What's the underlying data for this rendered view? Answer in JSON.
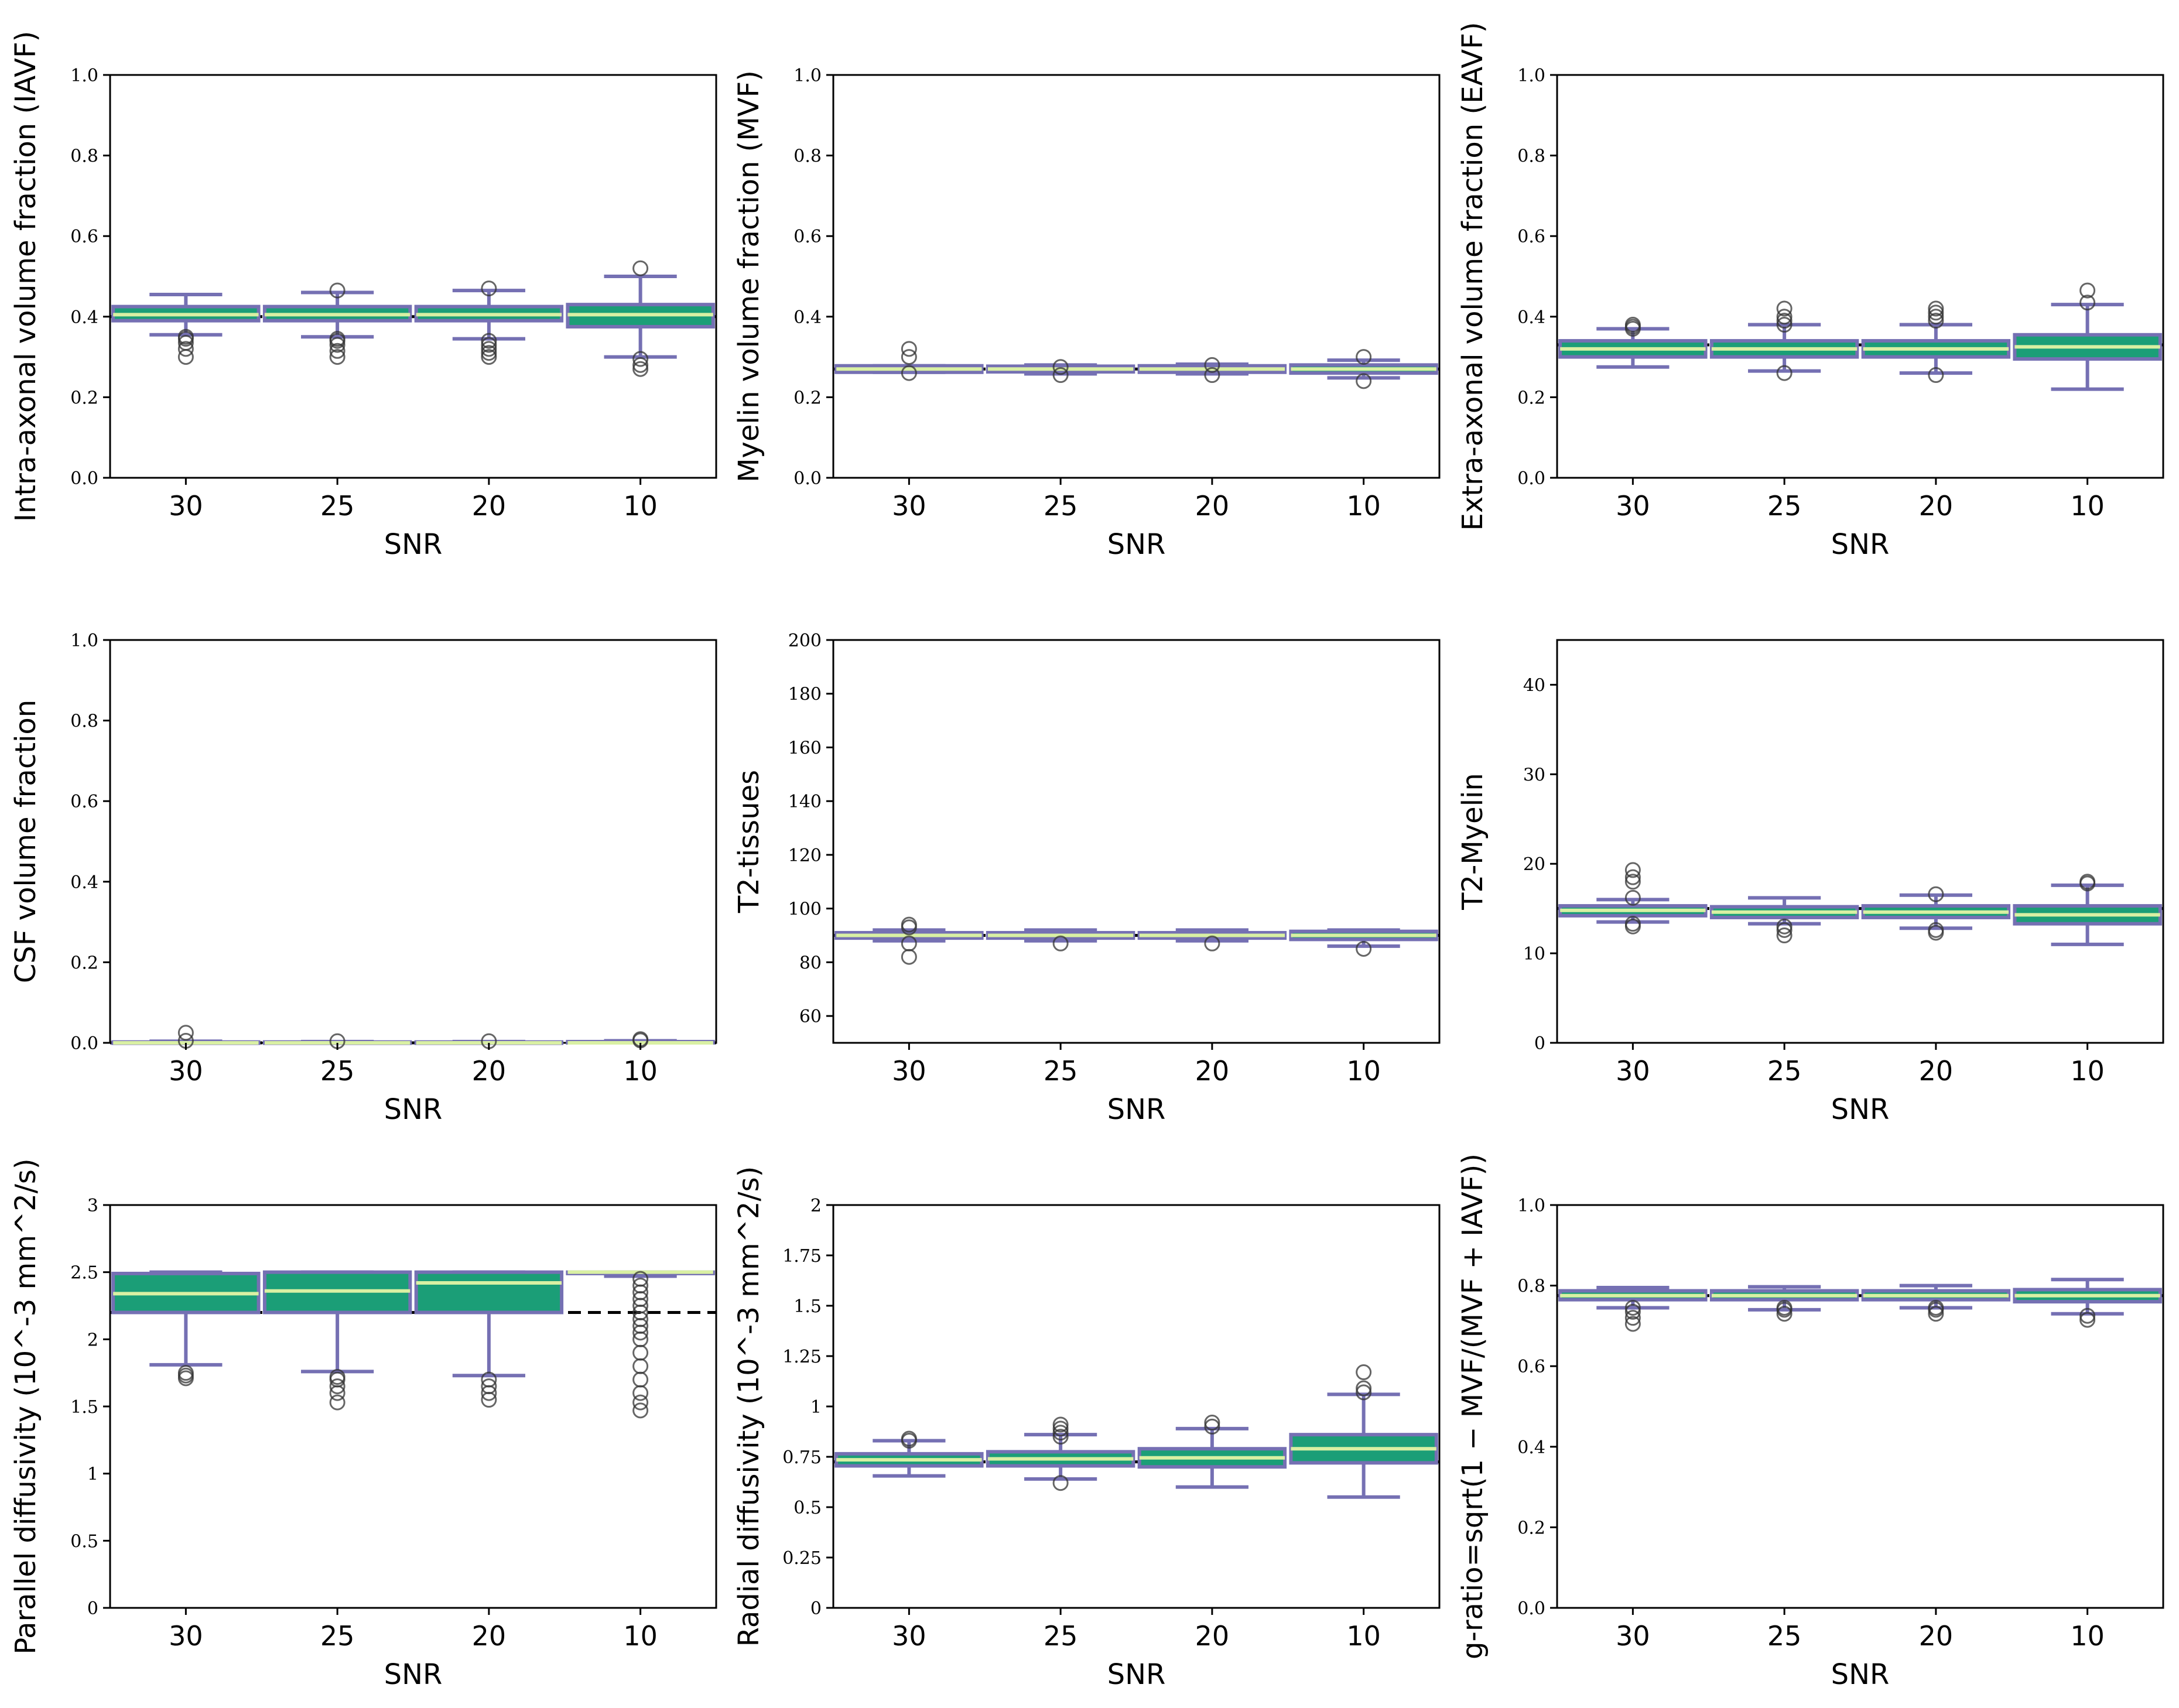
{
  "style": {
    "box_fill": "#1b9e77",
    "box_edge": "#7570b3",
    "median_color": "#d9f0a3",
    "reference_color": "#000000",
    "flier_edge": "#333333"
  },
  "chart_data": [
    {
      "type": "box",
      "title": "",
      "xlabel": "SNR",
      "ylabel": "Intra-axonal volume fraction (IAVF)",
      "categories": [
        "30",
        "25",
        "20",
        "10"
      ],
      "ylim": [
        0,
        1.0
      ],
      "yticks": [
        0.0,
        0.2,
        0.4,
        0.6,
        0.8,
        1.0
      ],
      "ytick_labels": [
        "0.0",
        "0.2",
        "0.4",
        "0.6",
        "0.8",
        "1.0"
      ],
      "reference": 0.4,
      "boxes": [
        {
          "q1": 0.39,
          "median": 0.405,
          "q3": 0.425,
          "whislo": 0.355,
          "whishi": 0.455,
          "fliers": [
            0.3,
            0.32,
            0.335,
            0.345,
            0.35
          ]
        },
        {
          "q1": 0.39,
          "median": 0.405,
          "q3": 0.425,
          "whislo": 0.35,
          "whishi": 0.46,
          "fliers": [
            0.3,
            0.315,
            0.33,
            0.34,
            0.345,
            0.465
          ]
        },
        {
          "q1": 0.39,
          "median": 0.405,
          "q3": 0.425,
          "whislo": 0.345,
          "whishi": 0.465,
          "fliers": [
            0.3,
            0.31,
            0.32,
            0.33,
            0.34,
            0.47
          ]
        },
        {
          "q1": 0.375,
          "median": 0.405,
          "q3": 0.43,
          "whislo": 0.3,
          "whishi": 0.5,
          "fliers": [
            0.27,
            0.28,
            0.295,
            0.52
          ]
        }
      ]
    },
    {
      "type": "box",
      "title": "",
      "xlabel": "SNR",
      "ylabel": "Myelin volume fraction (MVF)",
      "categories": [
        "30",
        "25",
        "20",
        "10"
      ],
      "ylim": [
        0,
        1.0
      ],
      "yticks": [
        0.0,
        0.2,
        0.4,
        0.6,
        0.8,
        1.0
      ],
      "ytick_labels": [
        "0.0",
        "0.2",
        "0.4",
        "0.6",
        "0.8",
        "1.0"
      ],
      "reference": 0.27,
      "boxes": [
        {
          "q1": 0.262,
          "median": 0.27,
          "q3": 0.278,
          "whislo": 0.262,
          "whishi": 0.278,
          "fliers": [
            0.26,
            0.3,
            0.32
          ]
        },
        {
          "q1": 0.263,
          "median": 0.27,
          "q3": 0.277,
          "whislo": 0.258,
          "whishi": 0.28,
          "fliers": [
            0.255,
            0.275
          ]
        },
        {
          "q1": 0.262,
          "median": 0.27,
          "q3": 0.278,
          "whislo": 0.258,
          "whishi": 0.282,
          "fliers": [
            0.255,
            0.28
          ]
        },
        {
          "q1": 0.26,
          "median": 0.27,
          "q3": 0.28,
          "whislo": 0.248,
          "whishi": 0.292,
          "fliers": [
            0.24,
            0.3
          ]
        }
      ]
    },
    {
      "type": "box",
      "title": "",
      "xlabel": "SNR",
      "ylabel": "Extra-axonal volume fraction (EAVF)",
      "categories": [
        "30",
        "25",
        "20",
        "10"
      ],
      "ylim": [
        0,
        1.0
      ],
      "yticks": [
        0.0,
        0.2,
        0.4,
        0.6,
        0.8,
        1.0
      ],
      "ytick_labels": [
        "0.0",
        "0.2",
        "0.4",
        "0.6",
        "0.8",
        "1.0"
      ],
      "reference": 0.33,
      "boxes": [
        {
          "q1": 0.3,
          "median": 0.32,
          "q3": 0.34,
          "whislo": 0.275,
          "whishi": 0.37,
          "fliers": [
            0.37,
            0.375,
            0.38
          ]
        },
        {
          "q1": 0.3,
          "median": 0.32,
          "q3": 0.34,
          "whislo": 0.265,
          "whishi": 0.38,
          "fliers": [
            0.26,
            0.38,
            0.39,
            0.4,
            0.42
          ]
        },
        {
          "q1": 0.3,
          "median": 0.32,
          "q3": 0.34,
          "whislo": 0.26,
          "whishi": 0.38,
          "fliers": [
            0.255,
            0.39,
            0.4,
            0.41,
            0.42
          ]
        },
        {
          "q1": 0.295,
          "median": 0.325,
          "q3": 0.355,
          "whislo": 0.22,
          "whishi": 0.43,
          "fliers": [
            0.435,
            0.465
          ]
        }
      ]
    },
    {
      "type": "box",
      "title": "",
      "xlabel": "SNR",
      "ylabel": "CSF volume fraction",
      "categories": [
        "30",
        "25",
        "20",
        "10"
      ],
      "ylim": [
        0,
        1.0
      ],
      "yticks": [
        0.0,
        0.2,
        0.4,
        0.6,
        0.8,
        1.0
      ],
      "ytick_labels": [
        "0.0",
        "0.2",
        "0.4",
        "0.6",
        "0.8",
        "1.0"
      ],
      "reference": 0.0,
      "boxes": [
        {
          "q1": 0.0,
          "median": 0.0,
          "q3": 0.002,
          "whislo": 0.0,
          "whishi": 0.004,
          "fliers": [
            0.005,
            0.025
          ]
        },
        {
          "q1": 0.0,
          "median": 0.0,
          "q3": 0.002,
          "whislo": 0.0,
          "whishi": 0.003,
          "fliers": [
            0.004
          ]
        },
        {
          "q1": 0.0,
          "median": 0.0,
          "q3": 0.002,
          "whislo": 0.0,
          "whishi": 0.003,
          "fliers": [
            0.004
          ]
        },
        {
          "q1": 0.0,
          "median": 0.0,
          "q3": 0.003,
          "whislo": 0.0,
          "whishi": 0.005,
          "fliers": [
            0.006,
            0.009
          ]
        }
      ]
    },
    {
      "type": "box",
      "title": "",
      "xlabel": "SNR",
      "ylabel": "T2-tissues",
      "categories": [
        "30",
        "25",
        "20",
        "10"
      ],
      "ylim": [
        50,
        200
      ],
      "yticks": [
        60,
        80,
        100,
        120,
        140,
        160,
        180,
        200
      ],
      "ytick_labels": [
        "60",
        "80",
        "100",
        "120",
        "140",
        "160",
        "180",
        "200"
      ],
      "reference": 90,
      "boxes": [
        {
          "q1": 89,
          "median": 90,
          "q3": 91,
          "whislo": 88,
          "whishi": 92,
          "fliers": [
            82,
            87,
            93,
            94
          ]
        },
        {
          "q1": 89,
          "median": 90,
          "q3": 91,
          "whislo": 88,
          "whishi": 92,
          "fliers": [
            87
          ]
        },
        {
          "q1": 89,
          "median": 90,
          "q3": 91,
          "whislo": 88,
          "whishi": 92,
          "fliers": [
            87
          ]
        },
        {
          "q1": 88.5,
          "median": 90,
          "q3": 91.5,
          "whislo": 86,
          "whishi": 92,
          "fliers": [
            85
          ]
        }
      ]
    },
    {
      "type": "box",
      "title": "",
      "xlabel": "SNR",
      "ylabel": "T2-Myelin",
      "categories": [
        "30",
        "25",
        "20",
        "10"
      ],
      "ylim": [
        0,
        45
      ],
      "yticks": [
        0,
        10,
        20,
        30,
        40
      ],
      "ytick_labels": [
        "0",
        "10",
        "20",
        "30",
        "40"
      ],
      "reference": 15,
      "boxes": [
        {
          "q1": 14.2,
          "median": 14.8,
          "q3": 15.3,
          "whislo": 13.5,
          "whishi": 16.0,
          "fliers": [
            13.0,
            13.3,
            16.2,
            18.0,
            18.5,
            19.3
          ]
        },
        {
          "q1": 14.0,
          "median": 14.6,
          "q3": 15.2,
          "whislo": 13.3,
          "whishi": 16.2,
          "fliers": [
            12.0,
            12.6,
            13.0
          ]
        },
        {
          "q1": 14.0,
          "median": 14.6,
          "q3": 15.3,
          "whislo": 12.8,
          "whishi": 16.5,
          "fliers": [
            12.3,
            12.6,
            16.6
          ]
        },
        {
          "q1": 13.3,
          "median": 14.3,
          "q3": 15.3,
          "whislo": 11.0,
          "whishi": 17.6,
          "fliers": [
            17.8,
            18.0
          ]
        }
      ]
    },
    {
      "type": "box",
      "title": "",
      "xlabel": "SNR",
      "ylabel": "Parallel diffusivity (10^-3 mm^2/s)",
      "categories": [
        "30",
        "25",
        "20",
        "10"
      ],
      "ylim": [
        0,
        3
      ],
      "yticks": [
        0,
        0.5,
        1,
        1.5,
        2,
        2.5,
        3
      ],
      "ytick_labels": [
        "0",
        "0.5",
        "1",
        "1.5",
        "2",
        "2.5",
        "3"
      ],
      "reference": 2.2,
      "boxes": [
        {
          "q1": 2.2,
          "median": 2.34,
          "q3": 2.49,
          "whislo": 1.81,
          "whishi": 2.5,
          "fliers": [
            1.71,
            1.73,
            1.75
          ]
        },
        {
          "q1": 2.2,
          "median": 2.36,
          "q3": 2.5,
          "whislo": 1.76,
          "whishi": 2.5,
          "fliers": [
            1.53,
            1.6,
            1.65,
            1.7,
            1.72
          ]
        },
        {
          "q1": 2.2,
          "median": 2.42,
          "q3": 2.5,
          "whislo": 1.73,
          "whishi": 2.5,
          "fliers": [
            1.55,
            1.6,
            1.65,
            1.7
          ]
        },
        {
          "q1": 2.49,
          "median": 2.5,
          "q3": 2.5,
          "whislo": 2.47,
          "whishi": 2.5,
          "fliers": [
            1.47,
            1.53,
            1.6,
            1.7,
            1.8,
            1.9,
            2.0,
            2.05,
            2.1,
            2.15,
            2.2,
            2.25,
            2.3,
            2.35,
            2.4,
            2.45
          ]
        }
      ]
    },
    {
      "type": "box",
      "title": "",
      "xlabel": "SNR",
      "ylabel": "Radial diffusivity (10^-3 mm^2/s)",
      "categories": [
        "30",
        "25",
        "20",
        "10"
      ],
      "ylim": [
        0,
        2
      ],
      "yticks": [
        0,
        0.25,
        0.5,
        0.75,
        1,
        1.25,
        1.5,
        1.75,
        2
      ],
      "ytick_labels": [
        "0",
        "0.25",
        "0.5",
        "0.75",
        "1",
        "1.25",
        "1.5",
        "1.75",
        "2"
      ],
      "reference": 0.725,
      "boxes": [
        {
          "q1": 0.705,
          "median": 0.735,
          "q3": 0.765,
          "whislo": 0.655,
          "whishi": 0.83,
          "fliers": [
            0.83,
            0.84
          ]
        },
        {
          "q1": 0.705,
          "median": 0.74,
          "q3": 0.775,
          "whislo": 0.64,
          "whishi": 0.86,
          "fliers": [
            0.62,
            0.85,
            0.87,
            0.89,
            0.91
          ]
        },
        {
          "q1": 0.7,
          "median": 0.745,
          "q3": 0.79,
          "whislo": 0.6,
          "whishi": 0.89,
          "fliers": [
            0.9,
            0.92
          ]
        },
        {
          "q1": 0.72,
          "median": 0.79,
          "q3": 0.86,
          "whislo": 0.55,
          "whishi": 1.06,
          "fliers": [
            1.07,
            1.09,
            1.17
          ]
        }
      ]
    },
    {
      "type": "box",
      "title": "",
      "xlabel": "SNR",
      "ylabel": "g-ratio=sqrt(1 − MVF/(MVF + IAVF))",
      "categories": [
        "30",
        "25",
        "20",
        "10"
      ],
      "ylim": [
        0,
        1.0
      ],
      "yticks": [
        0.0,
        0.2,
        0.4,
        0.6,
        0.8,
        1.0
      ],
      "ytick_labels": [
        "0.0",
        "0.2",
        "0.4",
        "0.6",
        "0.8",
        "1.0"
      ],
      "reference": 0.775,
      "boxes": [
        {
          "q1": 0.765,
          "median": 0.775,
          "q3": 0.787,
          "whislo": 0.745,
          "whishi": 0.795,
          "fliers": [
            0.705,
            0.72,
            0.735,
            0.745
          ]
        },
        {
          "q1": 0.765,
          "median": 0.775,
          "q3": 0.787,
          "whislo": 0.74,
          "whishi": 0.797,
          "fliers": [
            0.73,
            0.74,
            0.745
          ]
        },
        {
          "q1": 0.765,
          "median": 0.775,
          "q3": 0.787,
          "whislo": 0.745,
          "whishi": 0.8,
          "fliers": [
            0.73,
            0.74,
            0.745
          ]
        },
        {
          "q1": 0.76,
          "median": 0.775,
          "q3": 0.79,
          "whislo": 0.73,
          "whishi": 0.815,
          "fliers": [
            0.715,
            0.725
          ]
        }
      ]
    }
  ]
}
